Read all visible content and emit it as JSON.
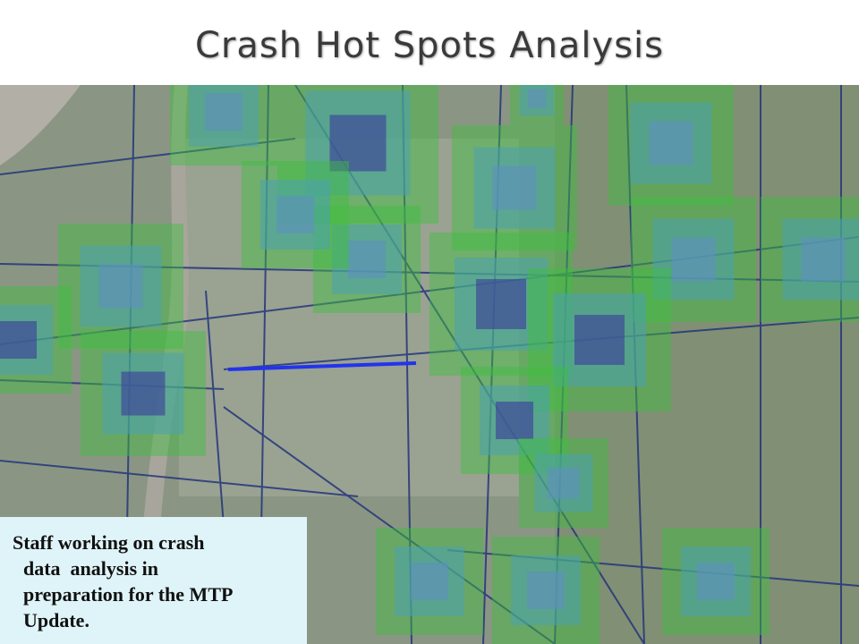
{
  "slide": {
    "title": "Crash Hot Spots Analysis",
    "caption": [
      "Staff working on crash",
      "data  analysis in",
      "preparation for the MTP",
      "Update."
    ]
  }
}
